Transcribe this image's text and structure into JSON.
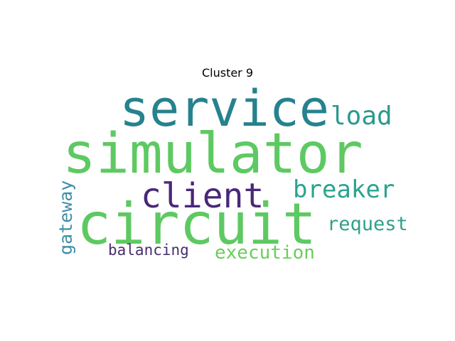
{
  "title": "Cluster 9",
  "words": [
    {
      "text": "service",
      "color": "#26828e",
      "orientation": "horizontal"
    },
    {
      "text": "load",
      "color": "#2a9a8b",
      "orientation": "horizontal"
    },
    {
      "text": "simulator",
      "color": "#5ec962",
      "orientation": "horizontal"
    },
    {
      "text": "client",
      "color": "#482878",
      "orientation": "horizontal"
    },
    {
      "text": "breaker",
      "color": "#2aa38f",
      "orientation": "horizontal"
    },
    {
      "text": "circuit",
      "color": "#5ec962",
      "orientation": "horizontal"
    },
    {
      "text": "gateway",
      "color": "#3e8ea8",
      "orientation": "vertical"
    },
    {
      "text": "request",
      "color": "#31a08a",
      "orientation": "horizontal"
    },
    {
      "text": "balancing",
      "color": "#46306c",
      "orientation": "horizontal"
    },
    {
      "text": "execution",
      "color": "#6ccd5a",
      "orientation": "horizontal"
    }
  ]
}
